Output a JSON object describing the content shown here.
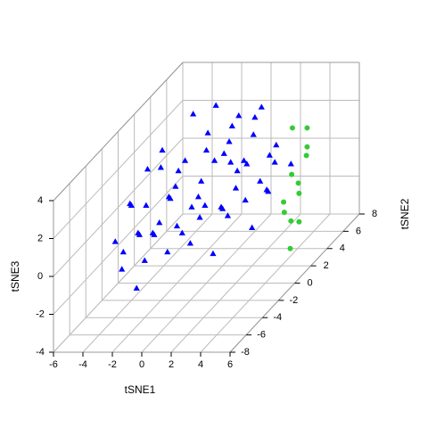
{
  "chart_data": {
    "type": "scatter3d",
    "xlabel": "tSNE1",
    "ylabel": "tSNE2",
    "zlabel": "tSNE3",
    "xlim": [
      -6,
      6
    ],
    "ylim": [
      -8,
      8
    ],
    "zlim": [
      -4,
      4
    ],
    "xticks": [
      -6,
      -4,
      -2,
      0,
      2,
      4,
      6
    ],
    "yticks": [
      -8,
      -6,
      -4,
      -2,
      0,
      2,
      4,
      6,
      8
    ],
    "zticks": [
      -4,
      -2,
      0,
      2,
      4
    ],
    "grid": true,
    "series": [
      {
        "color": "#0000ff",
        "marker": "triangle",
        "x": [
          -4,
          -4,
          -3,
          -3,
          -3,
          -2,
          -2,
          -2,
          -1,
          -1,
          -1,
          0,
          0,
          0,
          1,
          1,
          1,
          2,
          2,
          2,
          -3,
          -2,
          -1,
          0,
          1,
          0,
          -1,
          2,
          1,
          0,
          -2,
          -3,
          -4,
          -4,
          -3,
          -2,
          -1,
          0,
          1,
          2,
          -1,
          -2,
          -3,
          0,
          1,
          -1,
          0,
          1,
          2,
          3,
          3,
          -2,
          -3,
          -4,
          -2,
          0,
          1,
          2,
          3,
          -1
        ],
        "y": [
          -4,
          -3,
          -5,
          -2,
          -4,
          -3,
          -1,
          -5,
          -2,
          0,
          -3,
          -1,
          1,
          -2,
          0,
          2,
          -1,
          1,
          3,
          -1,
          0,
          1,
          2,
          3,
          4,
          5,
          4,
          5,
          6,
          6,
          3,
          2,
          0,
          -2,
          -1,
          0,
          1,
          2,
          3,
          2,
          -4,
          -2,
          -3,
          0,
          1,
          3,
          4,
          5,
          4,
          3,
          5,
          2,
          1,
          -1,
          -4,
          -3,
          -2,
          0,
          2,
          5
        ],
        "z": [
          0,
          -1,
          -1,
          1,
          2,
          0,
          1,
          -2,
          2,
          0,
          -1,
          1,
          2,
          -1,
          0,
          1,
          -2,
          2,
          0,
          0,
          3,
          2,
          3,
          1,
          2,
          0,
          1,
          1,
          0,
          2,
          0,
          1,
          2,
          1,
          -1,
          -1,
          -1,
          -1,
          -1,
          -2,
          1,
          3,
          0,
          3,
          3,
          4,
          3,
          3,
          -1,
          1,
          0,
          4,
          0,
          -1,
          -1,
          0,
          1,
          1,
          0,
          2
        ]
      },
      {
        "color": "#33cc33",
        "marker": "circle",
        "x": [
          3,
          3,
          3.5,
          2.5,
          3,
          3.5,
          2,
          3,
          3.5,
          2.5,
          3,
          2
        ],
        "y": [
          5,
          6,
          4,
          6,
          7,
          5,
          7,
          6,
          6,
          5,
          7,
          6
        ],
        "z": [
          -3,
          -2,
          -4,
          -1,
          0,
          -1,
          1,
          -3.5,
          0,
          -2,
          1,
          -3
        ]
      }
    ]
  }
}
